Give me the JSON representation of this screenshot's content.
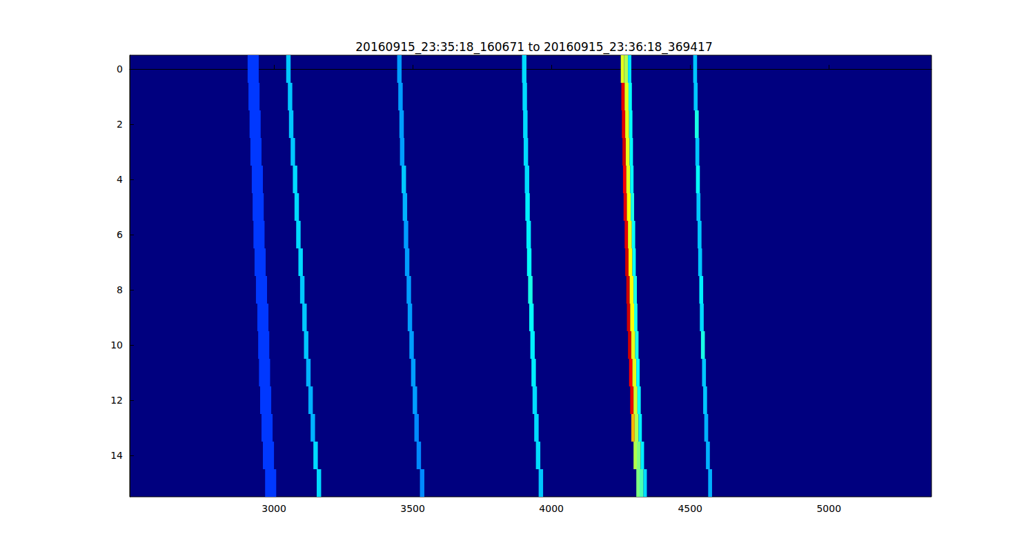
{
  "chart_data": {
    "type": "heatmap",
    "title": "20160915_23:35:18_160671 to 20160915_23:36:18_369417",
    "xlim": [
      2480,
      5370
    ],
    "xticks": [
      3000,
      3500,
      4000,
      4500,
      5000
    ],
    "ylim": [
      -0.5,
      15.5
    ],
    "yticks": [
      0,
      2,
      4,
      6,
      8,
      10,
      12,
      14
    ],
    "zlim": [
      0,
      1
    ],
    "cells": [
      [
        2905,
        2945,
        0,
        0.18
      ],
      [
        3044,
        3060,
        0,
        0.32
      ],
      [
        3444,
        3460,
        0,
        0.28
      ],
      [
        3894,
        3910,
        0,
        0.34
      ],
      [
        4250,
        4262,
        0,
        0.6
      ],
      [
        4262,
        4276,
        0,
        0.55
      ],
      [
        4276,
        4288,
        0,
        0.35
      ],
      [
        4511,
        4525,
        0,
        0.32
      ],
      [
        2908,
        2948,
        1,
        0.18
      ],
      [
        3050,
        3066,
        1,
        0.32
      ],
      [
        3448,
        3464,
        1,
        0.28
      ],
      [
        3896,
        3912,
        1,
        0.34
      ],
      [
        4252,
        4264,
        1,
        0.9
      ],
      [
        4264,
        4278,
        1,
        0.6
      ],
      [
        4278,
        4290,
        1,
        0.38
      ],
      [
        4513,
        4527,
        1,
        0.32
      ],
      [
        2912,
        2952,
        2,
        0.18
      ],
      [
        3054,
        3070,
        2,
        0.32
      ],
      [
        3452,
        3468,
        2,
        0.28
      ],
      [
        3898,
        3914,
        2,
        0.34
      ],
      [
        4254,
        4266,
        2,
        0.9
      ],
      [
        4266,
        4280,
        2,
        0.6
      ],
      [
        4280,
        4292,
        2,
        0.38
      ],
      [
        4517,
        4531,
        2,
        0.4
      ],
      [
        2915,
        2955,
        3,
        0.18
      ],
      [
        3060,
        3076,
        3,
        0.32
      ],
      [
        3454,
        3470,
        3,
        0.28
      ],
      [
        3900,
        3916,
        3,
        0.34
      ],
      [
        4256,
        4268,
        3,
        0.92
      ],
      [
        4268,
        4282,
        3,
        0.6
      ],
      [
        4282,
        4294,
        3,
        0.38
      ],
      [
        4519,
        4533,
        3,
        0.32
      ],
      [
        2920,
        2960,
        4,
        0.18
      ],
      [
        3068,
        3084,
        4,
        0.34
      ],
      [
        3460,
        3476,
        4,
        0.32
      ],
      [
        3904,
        3920,
        4,
        0.34
      ],
      [
        4258,
        4270,
        4,
        0.88
      ],
      [
        4270,
        4284,
        4,
        0.6
      ],
      [
        4284,
        4296,
        4,
        0.38
      ],
      [
        4521,
        4535,
        4,
        0.38
      ],
      [
        2923,
        2963,
        5,
        0.18
      ],
      [
        3074,
        3090,
        5,
        0.34
      ],
      [
        3464,
        3480,
        5,
        0.3
      ],
      [
        3906,
        3922,
        5,
        0.36
      ],
      [
        4260,
        4272,
        5,
        0.9
      ],
      [
        4272,
        4286,
        5,
        0.62
      ],
      [
        4286,
        4298,
        5,
        0.4
      ],
      [
        4523,
        4537,
        5,
        0.32
      ],
      [
        2926,
        2966,
        6,
        0.18
      ],
      [
        3080,
        3096,
        6,
        0.34
      ],
      [
        3468,
        3484,
        6,
        0.28
      ],
      [
        3910,
        3926,
        6,
        0.36
      ],
      [
        4264,
        4276,
        6,
        0.9
      ],
      [
        4276,
        4290,
        6,
        0.6
      ],
      [
        4290,
        4302,
        6,
        0.38
      ],
      [
        4527,
        4541,
        6,
        0.32
      ],
      [
        2930,
        2970,
        7,
        0.18
      ],
      [
        3088,
        3104,
        7,
        0.34
      ],
      [
        3472,
        3488,
        7,
        0.28
      ],
      [
        3912,
        3928,
        7,
        0.38
      ],
      [
        4266,
        4278,
        7,
        0.92
      ],
      [
        4278,
        4292,
        7,
        0.62
      ],
      [
        4292,
        4304,
        7,
        0.38
      ],
      [
        4529,
        4543,
        7,
        0.32
      ],
      [
        2935,
        2975,
        8,
        0.18
      ],
      [
        3094,
        3110,
        8,
        0.32
      ],
      [
        3478,
        3494,
        8,
        0.28
      ],
      [
        3916,
        3932,
        8,
        0.4
      ],
      [
        4270,
        4282,
        8,
        0.92
      ],
      [
        4282,
        4296,
        8,
        0.62
      ],
      [
        4296,
        4308,
        8,
        0.4
      ],
      [
        4533,
        4547,
        8,
        0.36
      ],
      [
        2940,
        2980,
        9,
        0.18
      ],
      [
        3102,
        3118,
        9,
        0.32
      ],
      [
        3482,
        3498,
        9,
        0.28
      ],
      [
        3920,
        3936,
        9,
        0.38
      ],
      [
        4272,
        4284,
        9,
        0.92
      ],
      [
        4284,
        4298,
        9,
        0.62
      ],
      [
        4298,
        4310,
        9,
        0.4
      ],
      [
        4535,
        4549,
        9,
        0.34
      ],
      [
        2943,
        2983,
        10,
        0.18
      ],
      [
        3108,
        3124,
        10,
        0.32
      ],
      [
        3488,
        3504,
        10,
        0.28
      ],
      [
        3924,
        3940,
        10,
        0.36
      ],
      [
        4276,
        4288,
        10,
        0.92
      ],
      [
        4288,
        4302,
        10,
        0.6
      ],
      [
        4302,
        4314,
        10,
        0.4
      ],
      [
        4539,
        4553,
        10,
        0.4
      ],
      [
        2946,
        2986,
        11,
        0.18
      ],
      [
        3116,
        3132,
        11,
        0.3
      ],
      [
        3494,
        3510,
        11,
        0.28
      ],
      [
        3928,
        3944,
        11,
        0.36
      ],
      [
        4280,
        4292,
        11,
        0.88
      ],
      [
        4292,
        4306,
        11,
        0.6
      ],
      [
        4306,
        4318,
        11,
        0.38
      ],
      [
        4543,
        4557,
        11,
        0.32
      ],
      [
        2950,
        2990,
        12,
        0.18
      ],
      [
        3124,
        3140,
        12,
        0.3
      ],
      [
        3500,
        3516,
        12,
        0.28
      ],
      [
        3932,
        3948,
        12,
        0.34
      ],
      [
        4284,
        4296,
        12,
        0.9
      ],
      [
        4296,
        4310,
        12,
        0.58
      ],
      [
        4310,
        4322,
        12,
        0.38
      ],
      [
        4547,
        4561,
        12,
        0.32
      ],
      [
        2955,
        2995,
        13,
        0.18
      ],
      [
        3132,
        3148,
        13,
        0.3
      ],
      [
        3506,
        3522,
        13,
        0.26
      ],
      [
        3938,
        3954,
        13,
        0.34
      ],
      [
        4288,
        4300,
        13,
        0.7
      ],
      [
        4300,
        4314,
        13,
        0.55
      ],
      [
        4314,
        4326,
        13,
        0.36
      ],
      [
        4551,
        4565,
        13,
        0.3
      ],
      [
        2960,
        3000,
        14,
        0.18
      ],
      [
        3142,
        3158,
        14,
        0.34
      ],
      [
        3514,
        3530,
        14,
        0.26
      ],
      [
        3944,
        3960,
        14,
        0.34
      ],
      [
        4296,
        4308,
        14,
        0.55
      ],
      [
        4308,
        4322,
        14,
        0.5
      ],
      [
        4322,
        4334,
        14,
        0.36
      ],
      [
        4557,
        4571,
        14,
        0.3
      ],
      [
        2968,
        3008,
        15,
        0.18
      ],
      [
        3154,
        3170,
        15,
        0.34
      ],
      [
        3526,
        3542,
        15,
        0.26
      ],
      [
        3954,
        3970,
        15,
        0.32
      ],
      [
        4306,
        4318,
        15,
        0.5
      ],
      [
        4318,
        4332,
        15,
        0.45
      ],
      [
        4332,
        4344,
        15,
        0.34
      ],
      [
        4565,
        4579,
        15,
        0.3
      ]
    ]
  }
}
